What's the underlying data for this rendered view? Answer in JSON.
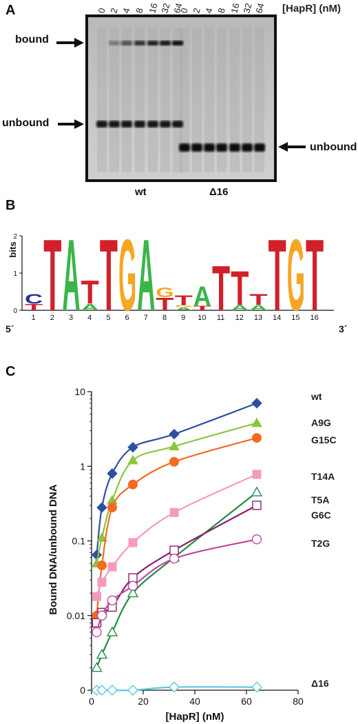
{
  "panelA": {
    "letter": "A",
    "conc_unit_label": "[HapR] (nM)",
    "lane_labels": [
      "0",
      "2",
      "4",
      "8",
      "16",
      "32",
      "64",
      "0",
      "2",
      "4",
      "8",
      "16",
      "32",
      "64"
    ],
    "bound_label": "bound",
    "unbound_left_label": "unbound",
    "unbound_right_label": "unbound",
    "group_wt": "wt",
    "group_d16": "Δ16",
    "wt_band_intensity": [
      0,
      0.35,
      0.6,
      0.8,
      0.9,
      0.95,
      1.0
    ]
  },
  "panelB": {
    "letter": "B",
    "ylabel": "bits",
    "yticks": [
      "0",
      "1",
      "2"
    ],
    "five_prime": "5´",
    "three_prime": "3´",
    "positions": [
      "1",
      "2",
      "3",
      "4",
      "5",
      "6",
      "7",
      "8",
      "9",
      "10",
      "11",
      "12",
      "13",
      "14",
      "15",
      "16"
    ],
    "colors": {
      "T": "#d0212a",
      "A": "#3bb54a",
      "G": "#f5a623",
      "C": "#2e3192"
    },
    "logo": [
      [
        {
          "l": "T",
          "h": 0.18
        },
        {
          "l": "C",
          "h": 0.28
        }
      ],
      [
        {
          "l": "T",
          "h": 2.0
        }
      ],
      [
        {
          "l": "A",
          "h": 2.0
        }
      ],
      [
        {
          "l": "A",
          "h": 0.18
        },
        {
          "l": "T",
          "h": 0.65
        }
      ],
      [
        {
          "l": "T",
          "h": 2.0
        }
      ],
      [
        {
          "l": "G",
          "h": 2.0
        }
      ],
      [
        {
          "l": "A",
          "h": 2.0
        }
      ],
      [
        {
          "l": "T",
          "h": 0.35
        },
        {
          "l": "G",
          "h": 0.28
        }
      ],
      [
        {
          "l": "A",
          "h": 0.08
        },
        {
          "l": "G",
          "h": 0.06
        },
        {
          "l": "T",
          "h": 0.28
        }
      ],
      [
        {
          "l": "T",
          "h": 0.12
        },
        {
          "l": "A",
          "h": 0.55
        }
      ],
      [
        {
          "l": "T",
          "h": 1.25
        }
      ],
      [
        {
          "l": "A",
          "h": 0.15
        },
        {
          "l": "T",
          "h": 0.95
        }
      ],
      [
        {
          "l": "A",
          "h": 0.15
        },
        {
          "l": "T",
          "h": 0.3
        }
      ],
      [
        {
          "l": "T",
          "h": 2.0
        }
      ],
      [
        {
          "l": "G",
          "h": 2.0
        }
      ],
      [
        {
          "l": "T",
          "h": 2.0
        }
      ]
    ]
  },
  "chart_data": {
    "type": "line",
    "letter": "C",
    "xlabel": "[HapR] (nM)",
    "ylabel": "Bound DNA/unbound DNA",
    "xlim": [
      0,
      80
    ],
    "xticks": [
      "0",
      "20",
      "40",
      "60",
      "80"
    ],
    "y_scale": "log",
    "ylim": [
      0.001,
      10
    ],
    "yticks": [
      {
        "v": 10,
        "label": "10"
      },
      {
        "v": 1,
        "label": "1"
      },
      {
        "v": 0.1,
        "label": "0.1"
      },
      {
        "v": 0.01,
        "label": "0.01"
      },
      {
        "v": 0.001,
        "label": "0"
      }
    ],
    "x": [
      2,
      4,
      8,
      16,
      32,
      64
    ],
    "series": [
      {
        "name": "wt",
        "color": "#2e4fa3",
        "marker": "diamond",
        "filled": true,
        "values": [
          0.065,
          0.28,
          0.8,
          1.8,
          2.7,
          7.0
        ]
      },
      {
        "name": "A9G",
        "color": "#8cc63f",
        "marker": "triangle",
        "filled": true,
        "values": [
          0.05,
          0.11,
          0.35,
          1.2,
          1.85,
          3.8
        ]
      },
      {
        "name": "G15C",
        "color": "#f26b21",
        "marker": "circle",
        "filled": true,
        "values": [
          0.01,
          0.047,
          0.28,
          0.57,
          1.15,
          2.4
        ]
      },
      {
        "name": "T14A",
        "color": "#f49ac1",
        "marker": "square",
        "filled": true,
        "values": [
          0.018,
          0.028,
          0.045,
          0.095,
          0.24,
          0.78
        ]
      },
      {
        "name": "T5A",
        "color": "#1e8c45",
        "marker": "triangle",
        "filled": false,
        "values": [
          0.002,
          0.003,
          0.006,
          0.02,
          0.06,
          0.45
        ]
      },
      {
        "name": "G6C",
        "color": "#8b1e6e",
        "marker": "square",
        "filled": false,
        "values": [
          0.008,
          0.011,
          0.013,
          0.032,
          0.075,
          0.3
        ]
      },
      {
        "name": "T2G",
        "color": "#c0479b",
        "marker": "circle",
        "filled": false,
        "values": [
          0.006,
          0.01,
          0.016,
          0.025,
          0.058,
          0.105
        ]
      },
      {
        "name": "Δ16",
        "color": "#5bc8e0",
        "marker": "diamond",
        "filled": false,
        "values": [
          0.001,
          0.001,
          0.001,
          0.001,
          0.0011,
          0.0011
        ]
      }
    ]
  }
}
